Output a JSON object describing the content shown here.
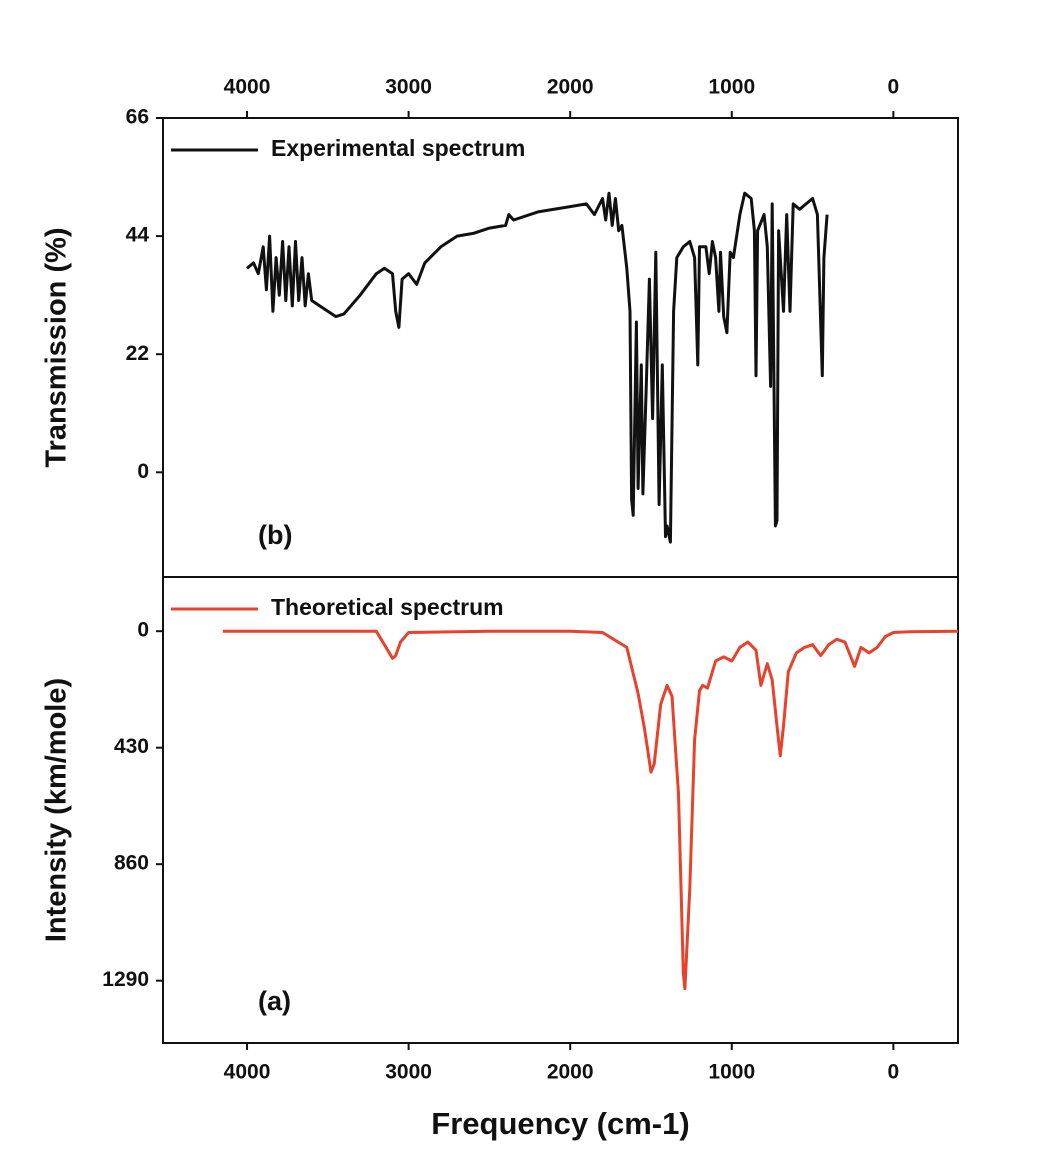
{
  "chart_data": [
    {
      "type": "line",
      "xaxis_position": "top",
      "legend": "upper left",
      "annotation": "(b)",
      "ylabel": "Transmission (%)",
      "xlim": [
        4520,
        -400
      ],
      "xticks": [
        4000,
        3000,
        2000,
        1000,
        0
      ],
      "ylim": [
        -19.5,
        66
      ],
      "yticks": [
        0,
        22,
        44,
        66
      ],
      "x": [
        4000,
        3960,
        3930,
        3900,
        3880,
        3860,
        3840,
        3820,
        3800,
        3780,
        3760,
        3740,
        3720,
        3700,
        3680,
        3660,
        3640,
        3620,
        3600,
        3550,
        3500,
        3450,
        3400,
        3300,
        3200,
        3150,
        3100,
        3080,
        3060,
        3040,
        3000,
        2950,
        2900,
        2800,
        2700,
        2600,
        2500,
        2400,
        2380,
        2350,
        2200,
        2000,
        1900,
        1850,
        1800,
        1780,
        1760,
        1740,
        1720,
        1700,
        1680,
        1650,
        1630,
        1620,
        1610,
        1590,
        1580,
        1560,
        1550,
        1530,
        1510,
        1490,
        1470,
        1450,
        1430,
        1410,
        1400,
        1380,
        1360,
        1340,
        1300,
        1260,
        1230,
        1210,
        1200,
        1160,
        1140,
        1120,
        1100,
        1080,
        1070,
        1050,
        1030,
        1010,
        990,
        950,
        920,
        880,
        860,
        850,
        840,
        800,
        780,
        760,
        750,
        730,
        720,
        710,
        680,
        660,
        640,
        620,
        580,
        540,
        500,
        470,
        440,
        430,
        410
      ],
      "series": [
        {
          "name": "Experimental spectrum",
          "color": "#111111",
          "values": [
            38,
            39,
            37,
            42,
            34,
            44,
            30,
            40,
            33,
            43,
            32,
            42,
            31,
            43,
            32,
            40,
            31,
            37,
            32,
            31,
            30,
            29,
            29.5,
            33,
            37,
            38,
            37,
            30,
            27,
            36,
            37,
            35,
            39,
            42,
            44,
            44.5,
            45.5,
            46,
            48,
            47,
            48.5,
            49.5,
            50,
            48,
            51,
            47,
            52,
            46,
            51,
            45,
            46,
            38,
            30,
            -5,
            -8,
            28,
            -3,
            20,
            -4,
            15,
            36,
            10,
            41,
            -6,
            20,
            -12,
            -10,
            -13,
            30,
            40,
            42,
            43,
            40,
            20,
            42,
            42,
            37,
            43,
            40,
            30,
            41,
            29,
            26,
            41,
            40,
            48,
            52,
            51,
            45,
            18,
            45,
            48,
            42,
            16,
            50,
            -10,
            -9,
            45,
            30,
            48,
            30,
            50,
            49,
            50,
            51,
            48,
            18,
            40,
            48
          ]
        }
      ]
    },
    {
      "type": "line",
      "legend": "upper left",
      "annotation": "(a)",
      "ylabel": "Intensity (km/mole)",
      "xlabel": "Frequency (cm-1)",
      "xlim": [
        4520,
        -400
      ],
      "xticks": [
        4000,
        3000,
        2000,
        1000,
        0
      ],
      "ylim": [
        1520,
        -200
      ],
      "yticks": [
        0,
        430,
        860,
        1290
      ],
      "x": [
        4150,
        3200,
        3150,
        3100,
        3080,
        3050,
        3000,
        2500,
        2000,
        1800,
        1650,
        1580,
        1540,
        1500,
        1480,
        1440,
        1400,
        1370,
        1330,
        1300,
        1290,
        1260,
        1230,
        1200,
        1180,
        1150,
        1100,
        1050,
        1000,
        950,
        900,
        850,
        820,
        800,
        780,
        750,
        720,
        700,
        680,
        650,
        600,
        550,
        500,
        450,
        400,
        350,
        300,
        260,
        240,
        200,
        150,
        100,
        50,
        0,
        -100,
        -400
      ],
      "series": [
        {
          "name": "Theoretical spectrum",
          "color": "#e8412c",
          "values": [
            0,
            0,
            50,
            100,
            90,
            40,
            5,
            0,
            0,
            5,
            60,
            230,
            360,
            520,
            490,
            270,
            200,
            240,
            600,
            1260,
            1320,
            950,
            400,
            220,
            200,
            210,
            110,
            95,
            110,
            60,
            40,
            70,
            200,
            160,
            120,
            180,
            350,
            460,
            350,
            150,
            80,
            60,
            50,
            90,
            50,
            30,
            40,
            100,
            130,
            60,
            80,
            60,
            20,
            5,
            2,
            0
          ]
        }
      ]
    }
  ]
}
